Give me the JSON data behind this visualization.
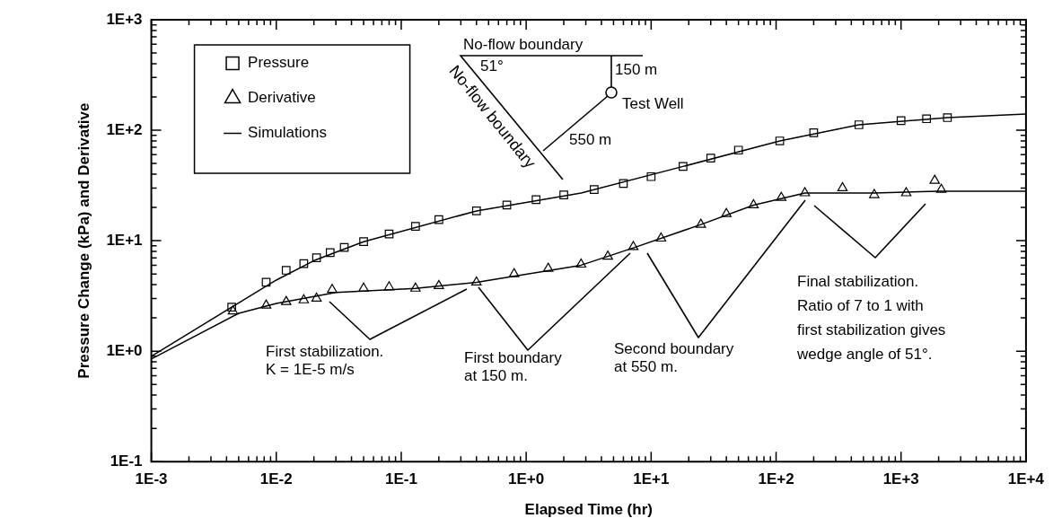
{
  "chart_data": {
    "type": "scatter",
    "xlabel": "Elapsed Time (hr)",
    "ylabel": "Pressure Change (kPa) and Derivative",
    "log": "xy",
    "legend": "top left",
    "xlim": [
      0.001,
      10000
    ],
    "ylim": [
      0.1,
      1000
    ],
    "xticks": [
      {
        "value": 0.001,
        "label": "1E-3"
      },
      {
        "value": 0.002,
        "label": null
      },
      {
        "value": 0.003,
        "label": null
      },
      {
        "value": 0.004,
        "label": null
      },
      {
        "value": 0.005,
        "label": null
      },
      {
        "value": 0.006,
        "label": null
      },
      {
        "value": 0.007,
        "label": null
      },
      {
        "value": 0.008,
        "label": null
      },
      {
        "value": 0.009,
        "label": null
      },
      {
        "value": 0.01,
        "label": "1E-2"
      },
      {
        "value": 0.02,
        "label": null
      },
      {
        "value": 0.03,
        "label": null
      },
      {
        "value": 0.04,
        "label": null
      },
      {
        "value": 0.05,
        "label": null
      },
      {
        "value": 0.06,
        "label": null
      },
      {
        "value": 0.07,
        "label": null
      },
      {
        "value": 0.08,
        "label": null
      },
      {
        "value": 0.09,
        "label": null
      },
      {
        "value": 0.1,
        "label": "1E-1"
      },
      {
        "value": 0.2,
        "label": null
      },
      {
        "value": 0.3,
        "label": null
      },
      {
        "value": 0.4,
        "label": null
      },
      {
        "value": 0.5,
        "label": null
      },
      {
        "value": 0.6,
        "label": null
      },
      {
        "value": 0.7,
        "label": null
      },
      {
        "value": 0.8,
        "label": null
      },
      {
        "value": 0.9,
        "label": null
      },
      {
        "value": 1,
        "label": "1E+0"
      },
      {
        "value": 2,
        "label": null
      },
      {
        "value": 3,
        "label": null
      },
      {
        "value": 4,
        "label": null
      },
      {
        "value": 5,
        "label": null
      },
      {
        "value": 6,
        "label": null
      },
      {
        "value": 7,
        "label": null
      },
      {
        "value": 8,
        "label": null
      },
      {
        "value": 9,
        "label": null
      },
      {
        "value": 10,
        "label": "1E+1"
      },
      {
        "value": 20,
        "label": null
      },
      {
        "value": 30,
        "label": null
      },
      {
        "value": 40,
        "label": null
      },
      {
        "value": 50,
        "label": null
      },
      {
        "value": 60,
        "label": null
      },
      {
        "value": 70,
        "label": null
      },
      {
        "value": 80,
        "label": null
      },
      {
        "value": 90,
        "label": null
      },
      {
        "value": 100,
        "label": "1E+2"
      },
      {
        "value": 200,
        "label": null
      },
      {
        "value": 300,
        "label": null
      },
      {
        "value": 400,
        "label": null
      },
      {
        "value": 500,
        "label": null
      },
      {
        "value": 600,
        "label": null
      },
      {
        "value": 700,
        "label": null
      },
      {
        "value": 800,
        "label": null
      },
      {
        "value": 900,
        "label": null
      },
      {
        "value": 1000,
        "label": "1E+3"
      },
      {
        "value": 2000,
        "label": null
      },
      {
        "value": 3000,
        "label": null
      },
      {
        "value": 4000,
        "label": null
      },
      {
        "value": 5000,
        "label": null
      },
      {
        "value": 6000,
        "label": null
      },
      {
        "value": 7000,
        "label": null
      },
      {
        "value": 8000,
        "label": null
      },
      {
        "value": 9000,
        "label": null
      },
      {
        "value": 10000,
        "label": "1E+4"
      }
    ],
    "yticks": [
      {
        "value": 0.1,
        "label": "1E-1"
      },
      {
        "value": 0.2,
        "label": null
      },
      {
        "value": 0.3,
        "label": null
      },
      {
        "value": 0.4,
        "label": null
      },
      {
        "value": 0.5,
        "label": null
      },
      {
        "value": 0.6,
        "label": null
      },
      {
        "value": 0.7,
        "label": null
      },
      {
        "value": 0.8,
        "label": null
      },
      {
        "value": 0.9,
        "label": null
      },
      {
        "value": 1,
        "label": "1E+0"
      },
      {
        "value": 2,
        "label": null
      },
      {
        "value": 3,
        "label": null
      },
      {
        "value": 4,
        "label": null
      },
      {
        "value": 5,
        "label": null
      },
      {
        "value": 6,
        "label": null
      },
      {
        "value": 7,
        "label": null
      },
      {
        "value": 8,
        "label": null
      },
      {
        "value": 9,
        "label": null
      },
      {
        "value": 10,
        "label": "1E+1"
      },
      {
        "value": 20,
        "label": null
      },
      {
        "value": 30,
        "label": null
      },
      {
        "value": 40,
        "label": null
      },
      {
        "value": 50,
        "label": null
      },
      {
        "value": 60,
        "label": null
      },
      {
        "value": 70,
        "label": null
      },
      {
        "value": 80,
        "label": null
      },
      {
        "value": 90,
        "label": null
      },
      {
        "value": 100,
        "label": "1E+2"
      },
      {
        "value": 200,
        "label": null
      },
      {
        "value": 300,
        "label": null
      },
      {
        "value": 400,
        "label": null
      },
      {
        "value": 500,
        "label": null
      },
      {
        "value": 600,
        "label": null
      },
      {
        "value": 700,
        "label": null
      },
      {
        "value": 800,
        "label": null
      },
      {
        "value": 900,
        "label": null
      },
      {
        "value": 1000,
        "label": "1E+3"
      }
    ],
    "series": [
      {
        "name": "Pressure",
        "type": "scatter",
        "marker": "square",
        "color": "#000000",
        "x": [
          0.0044,
          0.0083,
          0.012,
          0.0166,
          0.021,
          0.027,
          0.035,
          0.05,
          0.08,
          0.13,
          0.2,
          0.4,
          0.7,
          1.2,
          2,
          3.5,
          6,
          10,
          18,
          30,
          50,
          107,
          200,
          460,
          1000,
          1600,
          2350
        ],
        "values": [
          2.5,
          4.2,
          5.4,
          6.2,
          7,
          7.8,
          8.7,
          9.8,
          11.5,
          13.5,
          15.5,
          18.6,
          21,
          23.5,
          26,
          29,
          33,
          38,
          47,
          56,
          66,
          80,
          95,
          112,
          122,
          127,
          130
        ]
      },
      {
        "name": "Derivative",
        "type": "scatter",
        "marker": "triangle",
        "color": "#000000",
        "x": [
          0.0045,
          0.0083,
          0.012,
          0.0166,
          0.021,
          0.028,
          0.05,
          0.08,
          0.13,
          0.2,
          0.4,
          0.8,
          1.5,
          2.75,
          4.5,
          7.2,
          12,
          25,
          40,
          66,
          110,
          170,
          340,
          610,
          1100,
          1860,
          2100
        ],
        "values": [
          2.3,
          2.6,
          2.8,
          2.9,
          3,
          3.6,
          3.7,
          3.8,
          3.7,
          3.9,
          4.2,
          5,
          5.6,
          6.1,
          7.2,
          8.8,
          10.5,
          14,
          17.5,
          21,
          24.5,
          27,
          30,
          26,
          27,
          35,
          29
        ]
      },
      {
        "name": "Simulations",
        "type": "line",
        "marker": "none",
        "color": "#000000",
        "x": [
          0.001,
          0.0044,
          0.01,
          0.02,
          0.05,
          0.4,
          2.75,
          18,
          107,
          460,
          2350,
          10000
        ],
        "values": [
          0.9,
          2.5,
          4.4,
          6.6,
          9.8,
          18.6,
          27,
          47,
          80,
          112,
          130,
          140
        ]
      },
      {
        "type": "line",
        "marker": "none",
        "color": "#000000",
        "x": [
          0.001,
          0.005,
          0.01,
          0.03,
          0.13,
          0.4,
          2.75,
          7.2,
          25,
          66,
          170,
          600,
          2000,
          10000
        ],
        "values": [
          0.85,
          2.2,
          2.7,
          3.4,
          3.7,
          4.2,
          6,
          8.6,
          14,
          21,
          27,
          27,
          28,
          28
        ]
      }
    ],
    "annotations": [
      "No-flow boundary",
      "No-flow boundary",
      "51°",
      "150 m",
      "Test Well",
      "550 m",
      "First stabilization.\nK = 1E-5 m/s",
      "First boundary\nat 150 m.",
      "Second boundary\nat 550 m.",
      "Final stabilization.\nRatio of 7 to 1 with\nfirst stabilization gives\nwedge angle of 51°."
    ]
  }
}
